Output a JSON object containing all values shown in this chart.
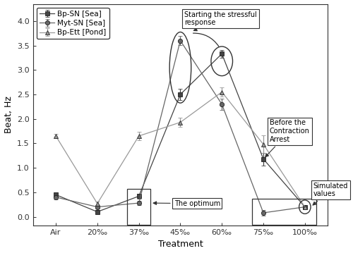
{
  "x_labels": [
    "Air",
    "20‰",
    "37‰",
    "45‰",
    "60‰",
    "75‰",
    "100‰"
  ],
  "x_positions": [
    0,
    1,
    2,
    3,
    4,
    5,
    6
  ],
  "series": [
    {
      "name": "Bp-SN [Sea]",
      "marker": "s",
      "color": "#444444",
      "y": [
        0.45,
        0.1,
        0.42,
        2.5,
        3.33,
        1.18,
        0.2
      ],
      "yerr": [
        0.05,
        0.04,
        0.05,
        0.12,
        0.08,
        0.13,
        0.03
      ]
    },
    {
      "name": "Myt-SN [Sea]",
      "marker": "o",
      "color": "#666666",
      "y": [
        0.4,
        0.2,
        0.28,
        3.6,
        2.3,
        0.08,
        0.2
      ],
      "yerr": [
        0.04,
        0.04,
        0.04,
        0.09,
        0.12,
        0.06,
        0.03
      ]
    },
    {
      "name": "Bp-Ett [Pond]",
      "marker": "^",
      "color": "#999999",
      "y": [
        1.65,
        0.27,
        1.65,
        1.93,
        2.55,
        1.48,
        0.2
      ],
      "yerr": [
        0.04,
        0.04,
        0.09,
        0.1,
        0.1,
        0.18,
        0.03
      ]
    }
  ],
  "ylabel": "Beat, Hz",
  "xlabel": "Treatment",
  "ylim": [
    -0.18,
    4.35
  ],
  "yticks": [
    0.0,
    0.5,
    1.0,
    1.5,
    2.0,
    2.5,
    3.0,
    3.5,
    4.0
  ],
  "background_color": "#ffffff",
  "legend_loc": "upper left",
  "figsize": [
    5.0,
    3.59
  ],
  "dpi": 100
}
